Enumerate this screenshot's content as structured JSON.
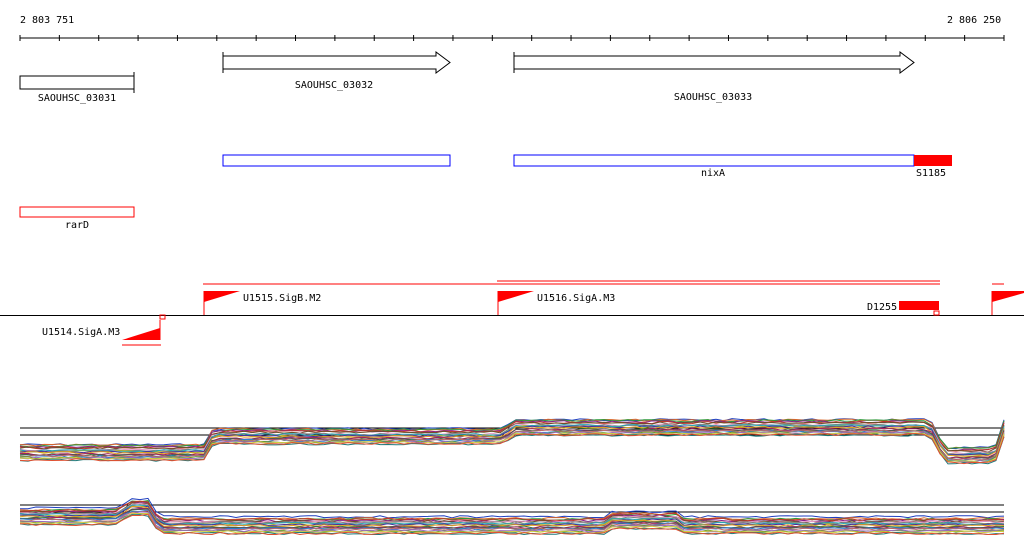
{
  "coords": {
    "start": "2 803 751",
    "end": "2 806 250"
  },
  "genes": [
    {
      "id": "gene-1",
      "label": "SAOUHSC_03031"
    },
    {
      "id": "gene-2",
      "label": "SAOUHSC_03032"
    },
    {
      "id": "gene-3",
      "label": "SAOUHSC_03033"
    }
  ],
  "features": [
    {
      "id": "nixA",
      "label": "nixA"
    },
    {
      "id": "S1185",
      "label": "S1185"
    },
    {
      "id": "rarD",
      "label": "rarD"
    }
  ],
  "promoters": [
    {
      "id": "U1515",
      "label": "U1515.SigB.M2"
    },
    {
      "id": "U1516",
      "label": "U1516.SigA.M3"
    },
    {
      "id": "D1255",
      "label": "D1255"
    },
    {
      "id": "U1514",
      "label": "U1514.SigA.M3"
    }
  ],
  "colors": {
    "feature_outline": "#0000ff",
    "reg_red": "#ff0000",
    "axis": "#000000"
  }
}
